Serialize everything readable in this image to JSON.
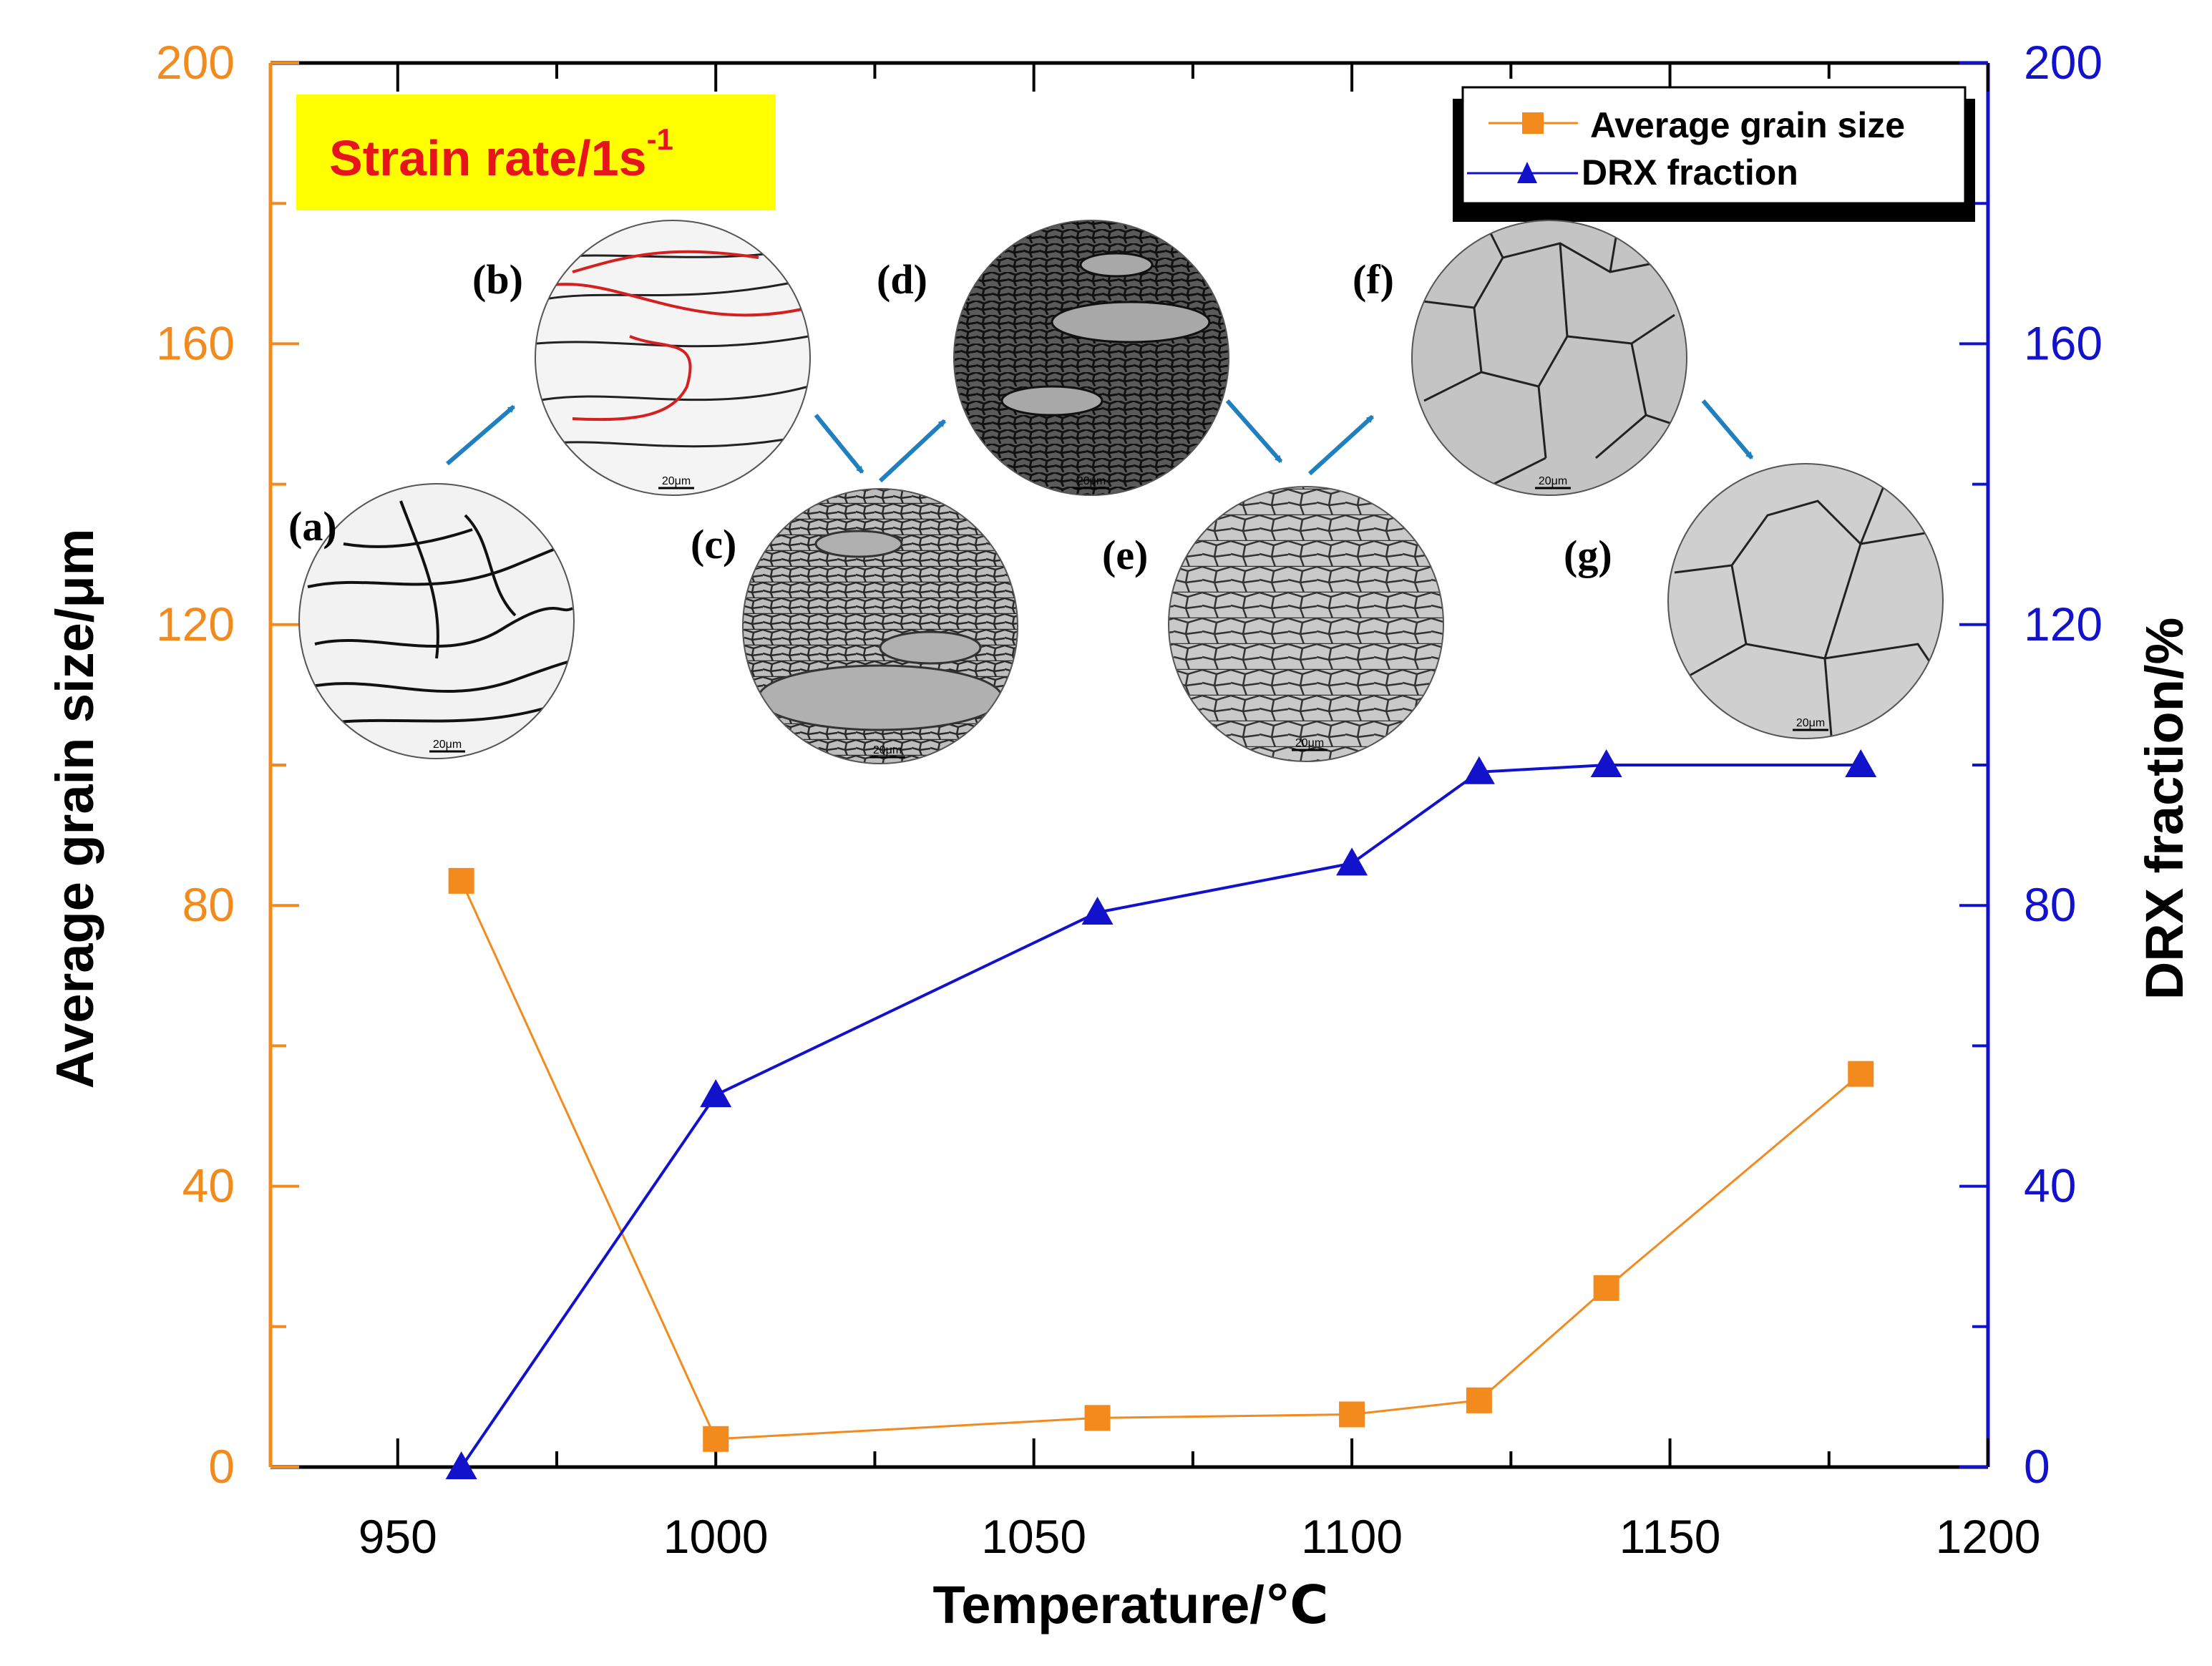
{
  "chart_data": {
    "type": "line",
    "x": [
      960,
      1000,
      1060,
      1100,
      1120,
      1140,
      1180
    ],
    "xlabel": "Temperature/℃",
    "xlim": [
      930,
      1200
    ],
    "xticks": [
      "950",
      "1000",
      "1050",
      "1100",
      "1150",
      "1200"
    ],
    "ylabel_left": "Average grain size/μm",
    "ylabel_right": "DRX fraction/%",
    "ylim_left": [
      0,
      200
    ],
    "ylim_right": [
      0,
      200
    ],
    "yticks_left": [
      "0",
      "40",
      "80",
      "120",
      "160",
      "200"
    ],
    "yticks_right": [
      "0",
      "40",
      "80",
      "120",
      "160",
      "200"
    ],
    "series": [
      {
        "name": "Average grain size",
        "axis": "left",
        "color": "#F28A1E",
        "marker": "square",
        "values": [
          83.5,
          4,
          7,
          7.5,
          9.5,
          25.5,
          56
        ]
      },
      {
        "name": "DRX fraction",
        "axis": "right",
        "color": "#1212CC",
        "marker": "triangle",
        "values": [
          0,
          53,
          79,
          86,
          99,
          100,
          100
        ]
      }
    ],
    "legend_position": "top-right",
    "grid": false
  },
  "annotation": {
    "label": "Strain rate/1s",
    "superscript": "-1",
    "background": "#FFFF00",
    "text_color": "#E8141C"
  },
  "insets": [
    {
      "label": "(a)",
      "scale_bar": "20μm",
      "style": "deformed"
    },
    {
      "label": "(b)",
      "scale_bar": "20μm",
      "style": "deformed-red"
    },
    {
      "label": "(c)",
      "scale_bar": "20μm",
      "style": "fine-mixed"
    },
    {
      "label": "(d)",
      "scale_bar": "20μm",
      "style": "fine-dark"
    },
    {
      "label": "(e)",
      "scale_bar": "20μm",
      "style": "fine-equiaxed"
    },
    {
      "label": "(f)",
      "scale_bar": "20μm",
      "style": "medium"
    },
    {
      "label": "(g)",
      "scale_bar": "20μm",
      "style": "coarse"
    }
  ],
  "colors": {
    "left_axis": "#F28A1E",
    "right_axis": "#1212CC",
    "arrow": "#1F7FBF"
  }
}
